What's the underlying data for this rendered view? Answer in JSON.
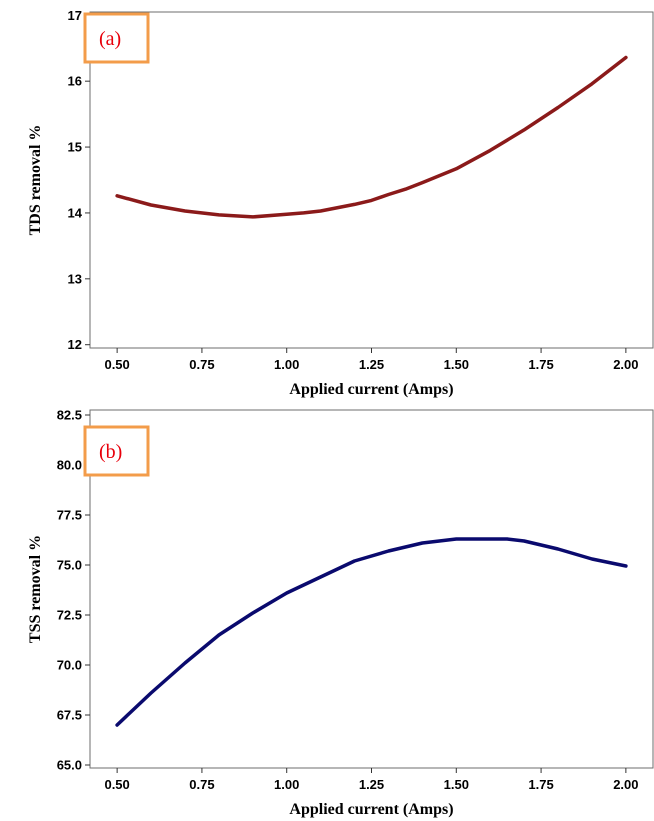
{
  "chart_data": [
    {
      "type": "line",
      "panel_label": "(a)",
      "xlabel": "Applied current (Amps)",
      "ylabel": "TDS removal %",
      "xlim": [
        0.42,
        2.08
      ],
      "ylim": [
        11.95,
        17.05
      ],
      "xticks": [
        "0.50",
        "0.75",
        "1.00",
        "1.25",
        "1.50",
        "1.75",
        "2.00"
      ],
      "yticks": [
        "12",
        "13",
        "14",
        "15",
        "16",
        "17"
      ],
      "grid": false,
      "line_color": "#8b1a1a",
      "x": [
        0.5,
        0.6,
        0.7,
        0.8,
        0.9,
        1.0,
        1.05,
        1.1,
        1.2,
        1.25,
        1.3,
        1.35,
        1.4,
        1.5,
        1.6,
        1.7,
        1.8,
        1.9,
        2.0
      ],
      "y": [
        14.26,
        14.12,
        14.03,
        13.97,
        13.94,
        13.98,
        14.0,
        14.03,
        14.13,
        14.19,
        14.28,
        14.36,
        14.46,
        14.67,
        14.95,
        15.26,
        15.6,
        15.96,
        16.36
      ]
    },
    {
      "type": "line",
      "panel_label": "(b)",
      "xlabel": "Applied current (Amps)",
      "ylabel": "TSS removal %",
      "xlim": [
        0.42,
        2.08
      ],
      "ylim": [
        64.85,
        82.75
      ],
      "xticks": [
        "0.50",
        "0.75",
        "1.00",
        "1.25",
        "1.50",
        "1.75",
        "2.00"
      ],
      "yticks": [
        "65.0",
        "67.5",
        "70.0",
        "72.5",
        "75.0",
        "77.5",
        "80.0",
        "82.5"
      ],
      "grid": false,
      "line_color": "#0a0a6e",
      "x": [
        0.5,
        0.6,
        0.7,
        0.8,
        0.9,
        1.0,
        1.1,
        1.2,
        1.3,
        1.4,
        1.5,
        1.6,
        1.65,
        1.7,
        1.8,
        1.9,
        2.0
      ],
      "y": [
        67.0,
        68.6,
        70.1,
        71.5,
        72.6,
        73.6,
        74.4,
        75.2,
        75.7,
        76.1,
        76.3,
        76.3,
        76.3,
        76.2,
        75.8,
        75.3,
        74.95
      ]
    }
  ]
}
